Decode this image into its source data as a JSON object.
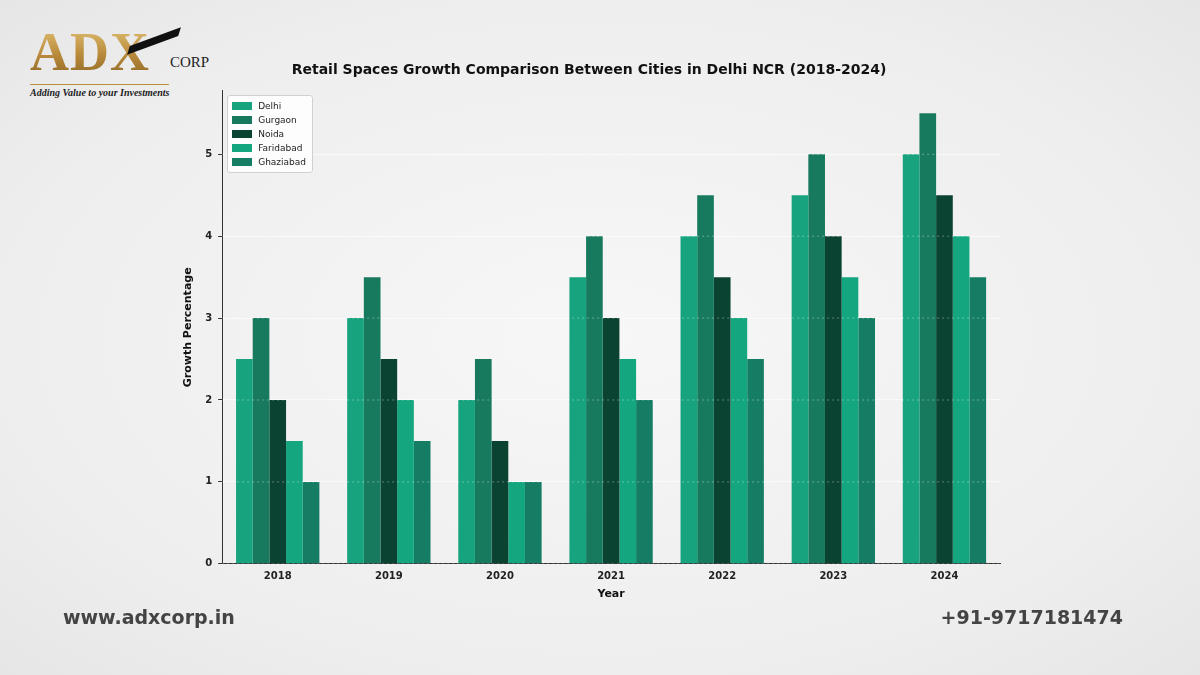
{
  "header": {
    "logo": "ADX",
    "logo_suffix": "CORP",
    "tagline": "Adding Value to your Investments"
  },
  "chart_data": {
    "type": "bar",
    "title": "Retail Spaces Growth Comparison Between Cities in Delhi NCR (2018-2024)",
    "x_label": "Year",
    "y_label": "Growth Percentage",
    "categories": [
      "2018",
      "2019",
      "2020",
      "2021",
      "2022",
      "2023",
      "2024"
    ],
    "series": [
      {
        "name": "Delhi",
        "color": "#16a37e",
        "values": [
          2.5,
          3,
          2,
          3.5,
          4,
          4.5,
          5
        ]
      },
      {
        "name": "Gurgaon",
        "color": "#177a5f",
        "values": [
          3,
          3.5,
          2.5,
          4,
          4.5,
          5,
          5.5
        ]
      },
      {
        "name": "Noida",
        "color": "#0a4332",
        "values": [
          2,
          2.5,
          1.5,
          3,
          3.5,
          4,
          4.5
        ]
      },
      {
        "name": "Faridabad",
        "color": "#13a67f",
        "values": [
          1.5,
          2,
          1,
          2.5,
          3,
          3.5,
          4
        ]
      },
      {
        "name": "Ghaziabad",
        "color": "#157d64",
        "values": [
          1,
          1.5,
          1,
          2,
          2.5,
          3,
          3.5
        ]
      }
    ],
    "ylim": [
      0,
      5.775
    ],
    "yticks": [
      0,
      1,
      2,
      3,
      4,
      5
    ],
    "grid": true,
    "legend": "upper left"
  },
  "footer": {
    "website": "www.adxcorp.in",
    "phone": "+91-9717181474"
  }
}
